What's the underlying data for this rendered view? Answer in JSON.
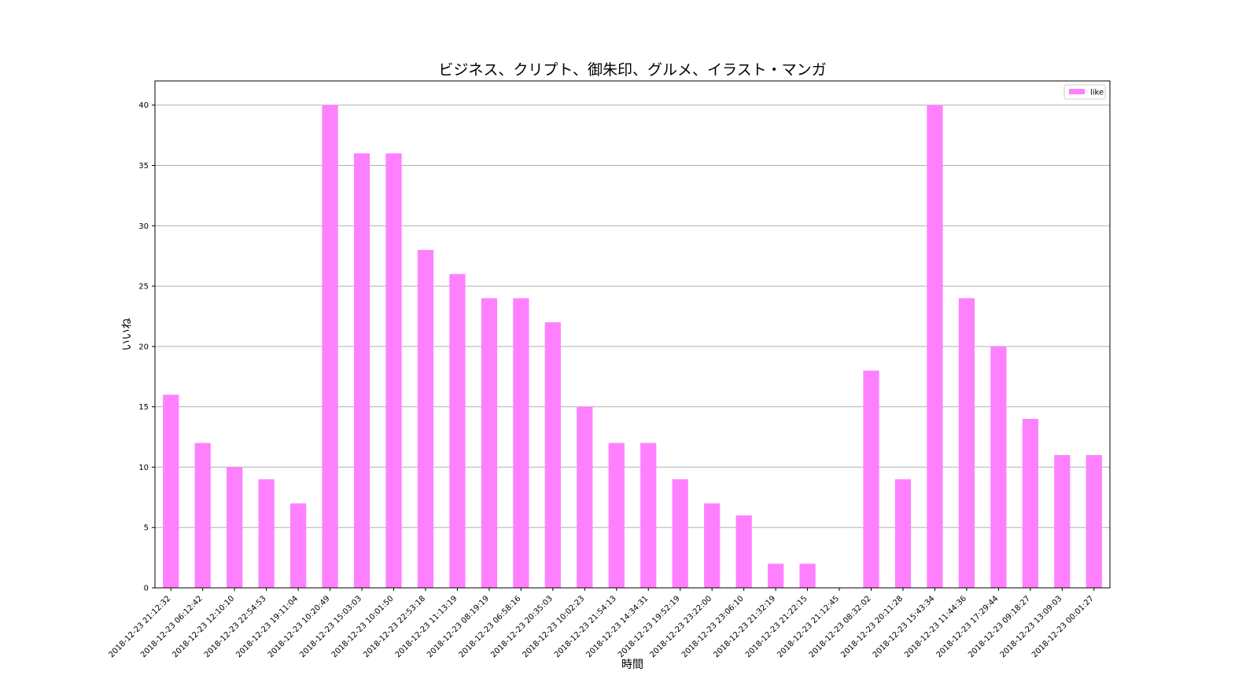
{
  "chart_data": {
    "type": "bar",
    "title": "ビジネス、クリプト、御朱印、グルメ、イラスト・マンガ",
    "xlabel": "時間",
    "ylabel": "いいね",
    "ylim": [
      0,
      42
    ],
    "yticks": [
      0,
      5,
      10,
      15,
      20,
      25,
      30,
      35,
      40
    ],
    "grid": "y",
    "legend_position": "top-right",
    "bar_color": "#ff80ff",
    "categories": [
      "2018-12-23 21:12:32",
      "2018-12-23 06:12:42",
      "2018-12-23 12:10:10",
      "2018-12-23 22:54:53",
      "2018-12-23 19:11:04",
      "2018-12-23 10:20:49",
      "2018-12-23 15:03:03",
      "2018-12-23 10:01:50",
      "2018-12-23 22:53:18",
      "2018-12-23 11:13:19",
      "2018-12-23 08:19:19",
      "2018-12-23 06:58:16",
      "2018-12-23 20:35:03",
      "2018-12-23 10:02:23",
      "2018-12-23 21:54:13",
      "2018-12-23 14:34:31",
      "2018-12-23 19:52:19",
      "2018-12-23 23:22:00",
      "2018-12-23 23:06:10",
      "2018-12-23 21:32:19",
      "2018-12-23 21:22:15",
      "2018-12-23 21:12:45",
      "2018-12-23 08:32:02",
      "2018-12-23 20:11:28",
      "2018-12-23 15:43:34",
      "2018-12-23 11:44:36",
      "2018-12-23 17:29:44",
      "2018-12-23 09:18:27",
      "2018-12-23 13:09:03",
      "2018-12-23 00:01:27"
    ],
    "series": [
      {
        "name": "like",
        "values": [
          16,
          12,
          10,
          9,
          7,
          40,
          36,
          36,
          28,
          26,
          24,
          24,
          22,
          15,
          12,
          12,
          9,
          7,
          6,
          2,
          2,
          0,
          18,
          9,
          40,
          24,
          20,
          14,
          11,
          11
        ]
      }
    ]
  }
}
